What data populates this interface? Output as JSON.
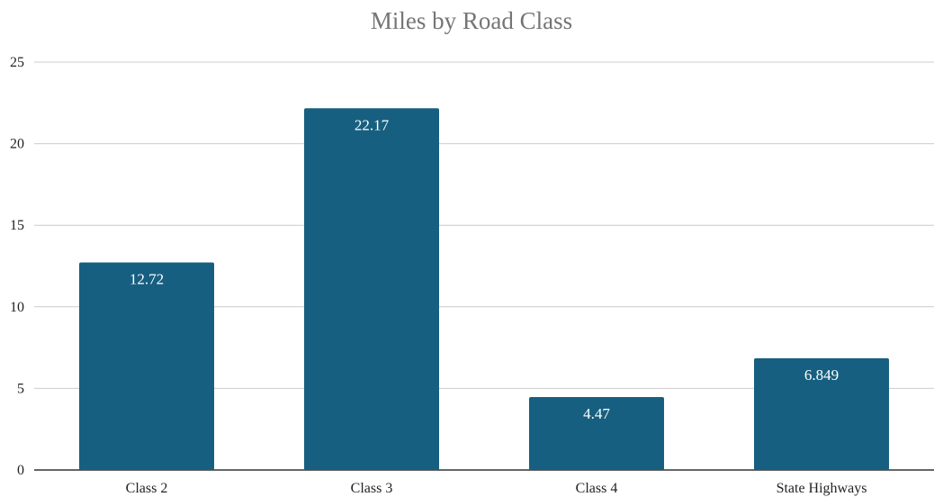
{
  "chart_data": {
    "type": "bar",
    "title": "Miles by Road Class",
    "xlabel": "",
    "ylabel": "",
    "categories": [
      "Class 2",
      "Class 3",
      "Class 4",
      "State Highways"
    ],
    "values": [
      12.72,
      22.17,
      4.47,
      6.849
    ],
    "data_labels": [
      "12.72",
      "22.17",
      "4.47",
      "6.849"
    ],
    "ylim": [
      0,
      25
    ],
    "yticks": [
      0,
      5,
      10,
      15,
      20,
      25
    ],
    "grid": true,
    "legend": "none",
    "colors": {
      "bar": "#175f80",
      "grid": "#cccccc",
      "axis": "#333333",
      "title": "#757575"
    }
  }
}
